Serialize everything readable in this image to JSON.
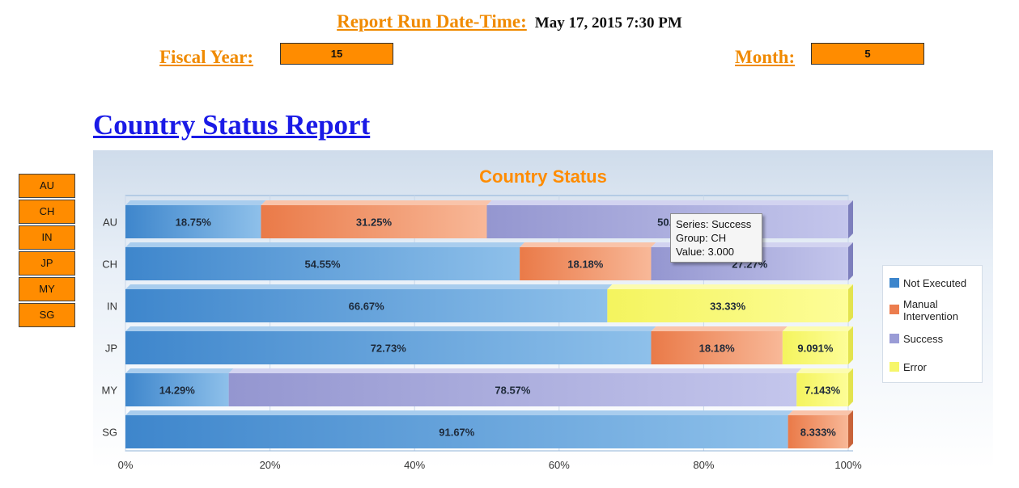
{
  "header": {
    "run_label": "Report Run Date-Time:",
    "run_value": "May 17, 2015 7:30 PM",
    "fiscal_year_label": "Fiscal Year:",
    "fiscal_year_value": "15",
    "month_label": "Month:",
    "month_value": "5"
  },
  "report_title": "Country Status Report",
  "countries": [
    "AU",
    "CH",
    "IN",
    "JP",
    "MY",
    "SG"
  ],
  "colors": {
    "not_executed": "#4a90d0",
    "manual_intervention": "#f0845a",
    "success": "#a0a4d8",
    "error": "#fafa72",
    "accent_orange": "#ff8c00",
    "title_blue": "#1a1ae6"
  },
  "tooltip": {
    "series": "Series: Success",
    "group": "Group: CH",
    "value": "Value: 3.000"
  },
  "chart_data": {
    "type": "bar",
    "orientation": "horizontal",
    "stacked": "percent",
    "title": "Country Status",
    "categories": [
      "AU",
      "CH",
      "IN",
      "JP",
      "MY",
      "SG"
    ],
    "xlim": [
      0,
      100
    ],
    "x_ticks": [
      "0%",
      "20%",
      "40%",
      "60%",
      "80%",
      "100%"
    ],
    "legend_position": "right",
    "series": [
      {
        "name": "Not Executed",
        "values": [
          18.75,
          54.55,
          66.67,
          72.73,
          14.29,
          91.67
        ],
        "labels": [
          "18.75%",
          "54.55%",
          "66.67%",
          "72.73%",
          "14.29%",
          "91.67%"
        ]
      },
      {
        "name": "Manual Intervention",
        "values": [
          31.25,
          18.18,
          0,
          18.18,
          0,
          8.333
        ],
        "labels": [
          "31.25%",
          "18.18%",
          "",
          "18.18%",
          "",
          "8.333%"
        ]
      },
      {
        "name": "Success",
        "values": [
          50.0,
          27.27,
          0,
          0,
          78.57,
          0
        ],
        "labels": [
          "50.0",
          "27.27%",
          "",
          "",
          "78.57%",
          ""
        ]
      },
      {
        "name": "Error",
        "values": [
          0,
          0,
          33.33,
          9.091,
          7.143,
          0
        ],
        "labels": [
          "",
          "",
          "33.33%",
          "9.091%",
          "7.143%",
          ""
        ]
      }
    ]
  }
}
